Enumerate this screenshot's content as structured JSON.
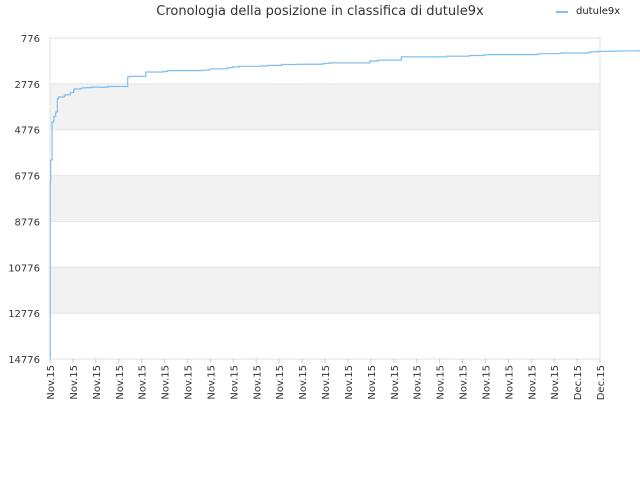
{
  "chart_data": {
    "type": "line",
    "title": "Cronologia della posizione in classifica di dutule9x",
    "xlabel": "",
    "ylabel": "",
    "y_inverted": true,
    "ylim": [
      776,
      14776
    ],
    "y_ticks": [
      776,
      2776,
      4776,
      6776,
      8776,
      10776,
      12776,
      14776
    ],
    "x_ticks": [
      "Nov.15",
      "Nov.15",
      "Nov.15",
      "Nov.15",
      "Nov.15",
      "Nov.15",
      "Nov.15",
      "Nov.15",
      "Nov.15",
      "Nov.15",
      "Nov.15",
      "Nov.15",
      "Nov.15",
      "Nov.15",
      "Nov.15",
      "Nov.15",
      "Nov.15",
      "Nov.15",
      "Nov.15",
      "Nov.15",
      "Nov.15",
      "Nov.15",
      "Nov.15",
      "Dec.15",
      "Dec.15"
    ],
    "legend_position": "top-right",
    "band_color": "#f2f2f2",
    "series": [
      {
        "name": "dutule9x",
        "color": "#7fbfef",
        "x": [
          0,
          0.01,
          0.03,
          0.09,
          0.15,
          0.17,
          0.25,
          0.32,
          0.33,
          0.37,
          0.38,
          0.52,
          0.62,
          0.67,
          0.83,
          0.89,
          1.03,
          1.05,
          1.33,
          1.38,
          1.42,
          1.56,
          1.83,
          1.97,
          2.21,
          2.28,
          2.53,
          3.39,
          3.46,
          3.53,
          4.18,
          4.87,
          4.94,
          5.13,
          6.52,
          6.66,
          6.95,
          7.07,
          7.74,
          7.95,
          8.25,
          9.19,
          9.26,
          9.51,
          10.11,
          10.8,
          10.82,
          11.89,
          12.0,
          12.2,
          12.31,
          13.47,
          13.95,
          14.32,
          14.36,
          15.33,
          17.19,
          17.3,
          18.3,
          18.96,
          19.14,
          20.71,
          21.27,
          21.39,
          22.03,
          22.26,
          23.45,
          23.57,
          23.92,
          24.49,
          24.53,
          24.94,
          25.71,
          26.78,
          27.89
        ],
        "values": [
          14776,
          7050,
          6100,
          4450,
          4380,
          4200,
          4000,
          3450,
          3420,
          3360,
          3350,
          3350,
          3300,
          3250,
          3250,
          3150,
          3040,
          3000,
          2990,
          2960,
          2950,
          2940,
          2920,
          2920,
          2935,
          2925,
          2890,
          2480,
          2450,
          2450,
          2260,
          2260,
          2240,
          2200,
          2200,
          2180,
          2130,
          2120,
          2070,
          2040,
          2010,
          1990,
          1990,
          1970,
          1930,
          1920,
          1920,
          1900,
          1880,
          1860,
          1860,
          1860,
          1780,
          1740,
          1740,
          1600,
          1600,
          1570,
          1540,
          1510,
          1500,
          1500,
          1470,
          1460,
          1460,
          1430,
          1420,
          1380,
          1360,
          1350,
          1350,
          1340,
          1330,
          1320,
          1320
        ]
      }
    ]
  }
}
